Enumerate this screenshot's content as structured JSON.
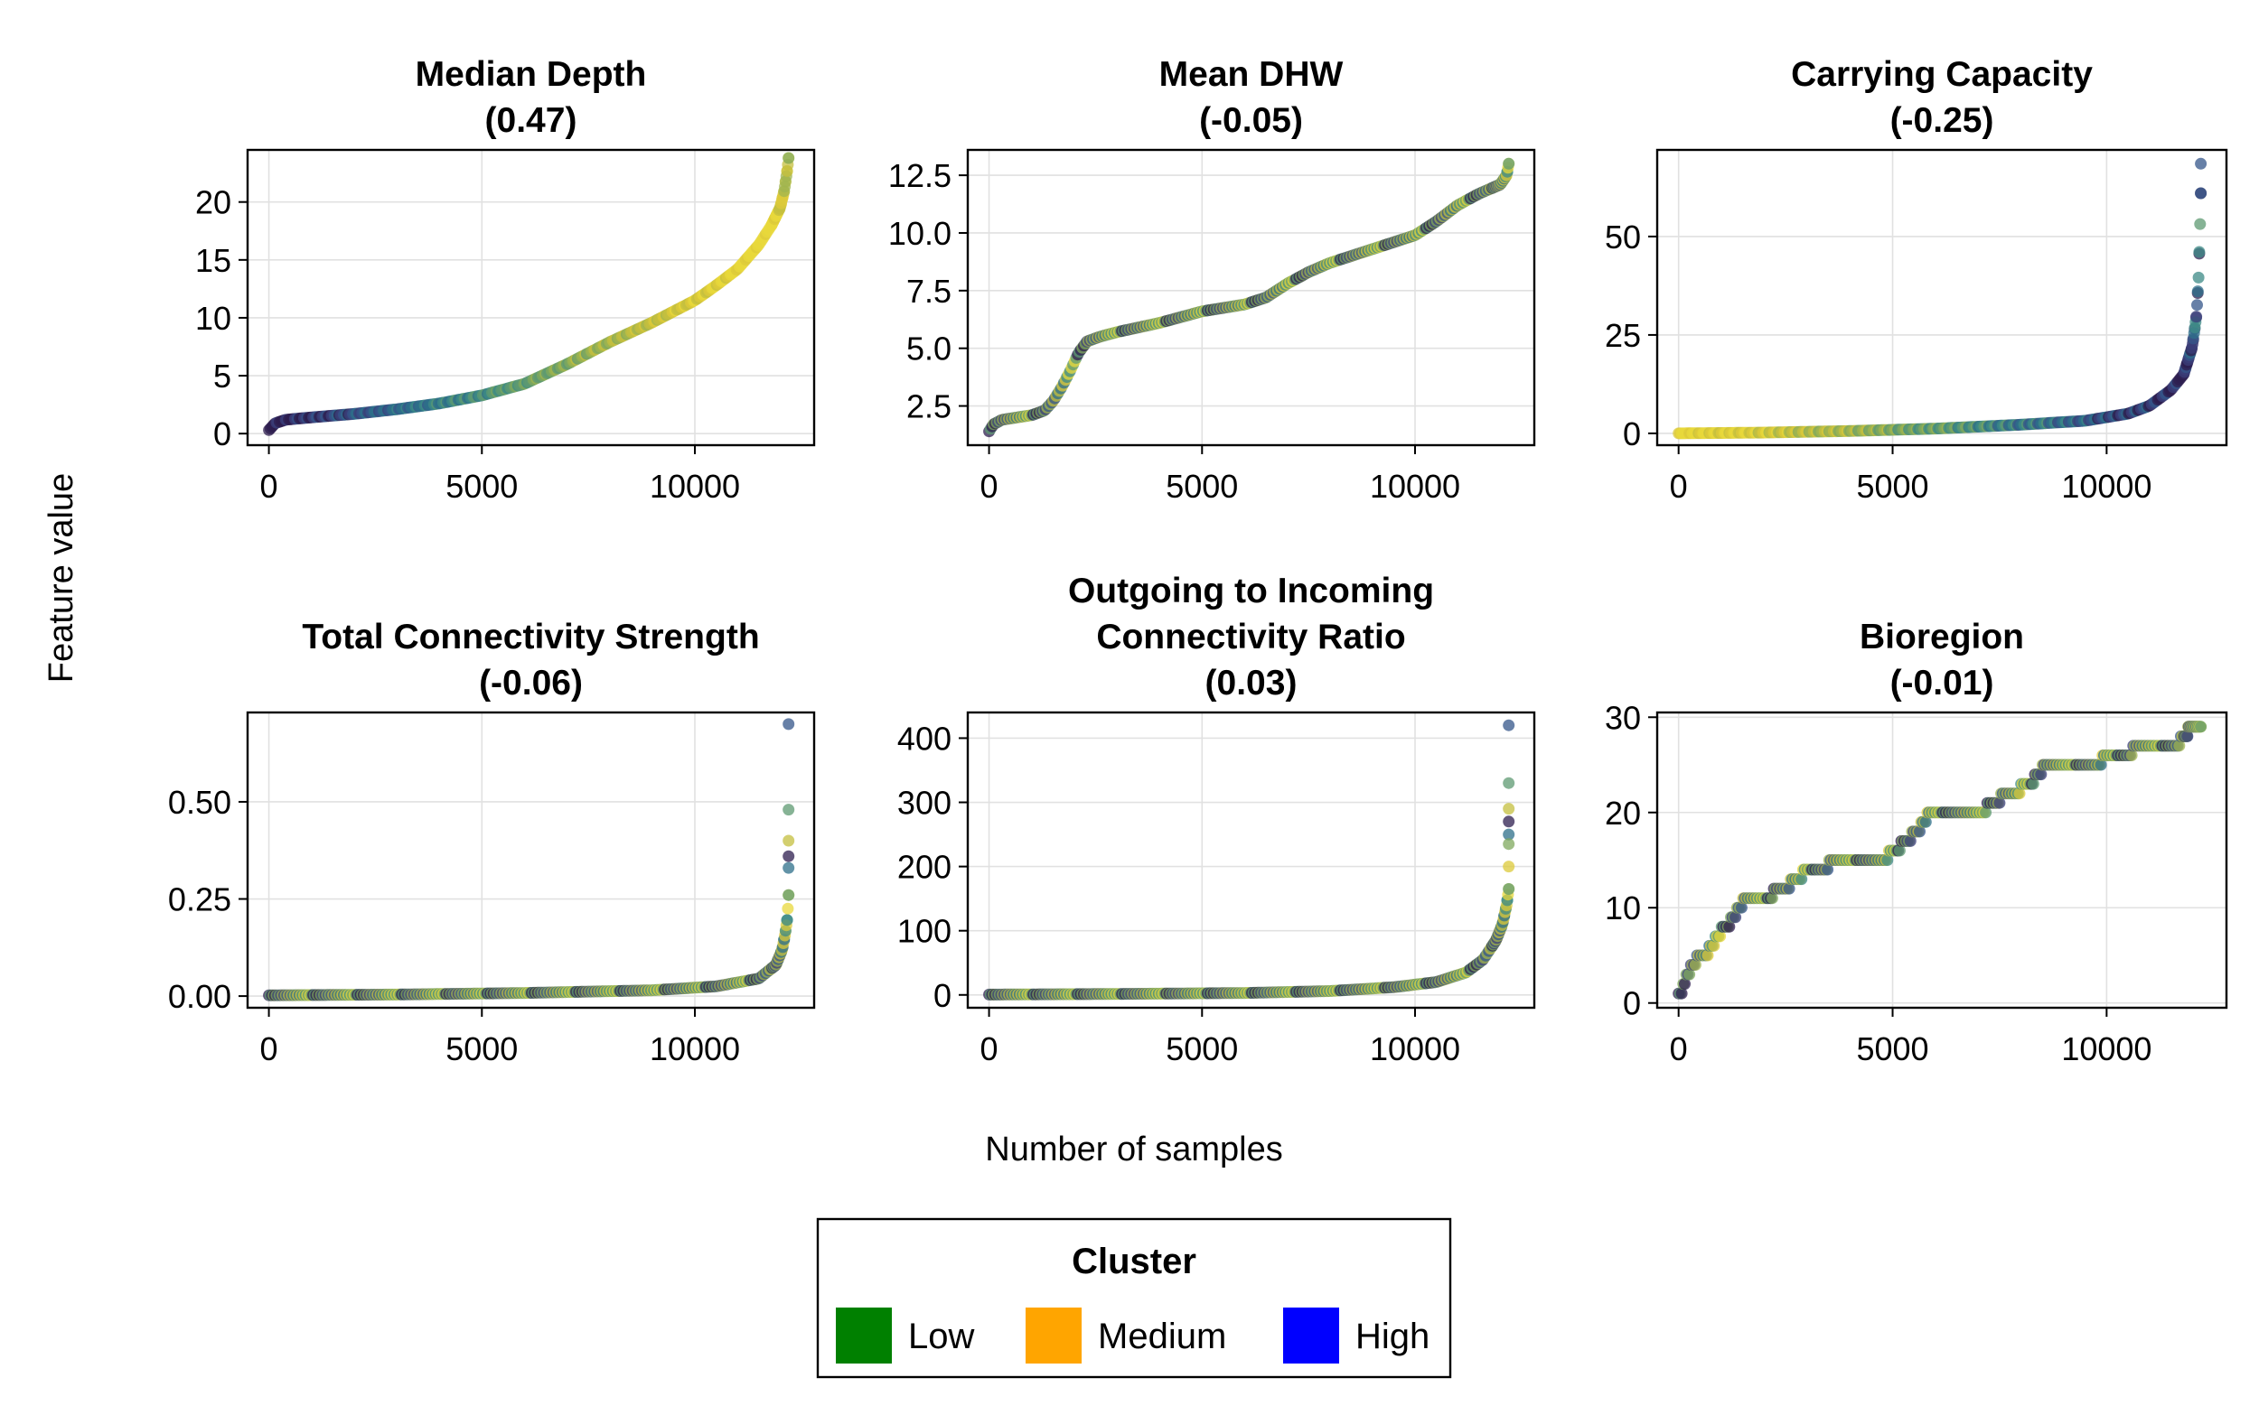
{
  "figure": {
    "ylabel": "Feature value",
    "xlabel": "Number of samples",
    "legend": {
      "title": "Cluster",
      "items": [
        {
          "label": "Low",
          "color": "#008000"
        },
        {
          "label": "Medium",
          "color": "#ffa500"
        },
        {
          "label": "High",
          "color": "#0000ff"
        }
      ]
    }
  },
  "chart_data": [
    {
      "type": "scatter",
      "title_lines": [
        "Median Depth",
        "(0.47)"
      ],
      "xlim": [
        -500,
        12800
      ],
      "ylim": [
        -1,
        24.5
      ],
      "xticks": [
        0,
        5000,
        10000
      ],
      "xtick_labels": [
        "0",
        "5000",
        "10000"
      ],
      "yticks": [
        0,
        5,
        10,
        15,
        20
      ],
      "ytick_labels": [
        "0",
        "5",
        "10",
        "15",
        "20"
      ],
      "grid": true,
      "curve": [
        [
          0,
          0.3
        ],
        [
          150,
          0.9
        ],
        [
          400,
          1.2
        ],
        [
          1000,
          1.4
        ],
        [
          2000,
          1.7
        ],
        [
          3000,
          2.1
        ],
        [
          4000,
          2.6
        ],
        [
          5000,
          3.3
        ],
        [
          6000,
          4.3
        ],
        [
          7000,
          6.0
        ],
        [
          8000,
          7.9
        ],
        [
          9000,
          9.6
        ],
        [
          10000,
          11.5
        ],
        [
          10500,
          12.8
        ],
        [
          11000,
          14.2
        ],
        [
          11500,
          16.3
        ],
        [
          11800,
          18.0
        ],
        [
          12000,
          19.5
        ],
        [
          12100,
          21.0
        ],
        [
          12170,
          22.8
        ],
        [
          12200,
          23.8
        ]
      ],
      "color_trend": "dark-to-yellow"
    },
    {
      "type": "scatter",
      "title_lines": [
        "Mean DHW",
        "(-0.05)"
      ],
      "xlim": [
        -500,
        12800
      ],
      "ylim": [
        0.8,
        13.6
      ],
      "xticks": [
        0,
        5000,
        10000
      ],
      "xtick_labels": [
        "0",
        "5000",
        "10000"
      ],
      "yticks": [
        2.5,
        5.0,
        7.5,
        10.0,
        12.5
      ],
      "ytick_labels": [
        "2.5",
        "5.0",
        "7.5",
        "10.0",
        "12.5"
      ],
      "grid": true,
      "curve": [
        [
          0,
          1.4
        ],
        [
          100,
          1.7
        ],
        [
          300,
          1.9
        ],
        [
          1000,
          2.1
        ],
        [
          1300,
          2.3
        ],
        [
          1500,
          2.7
        ],
        [
          1700,
          3.3
        ],
        [
          1900,
          4.0
        ],
        [
          2100,
          4.8
        ],
        [
          2300,
          5.3
        ],
        [
          2600,
          5.5
        ],
        [
          3000,
          5.7
        ],
        [
          4000,
          6.1
        ],
        [
          5000,
          6.6
        ],
        [
          6000,
          6.9
        ],
        [
          6500,
          7.2
        ],
        [
          7000,
          7.8
        ],
        [
          7500,
          8.3
        ],
        [
          8000,
          8.7
        ],
        [
          9000,
          9.3
        ],
        [
          10000,
          9.9
        ],
        [
          10500,
          10.5
        ],
        [
          11000,
          11.2
        ],
        [
          11500,
          11.7
        ],
        [
          12000,
          12.1
        ],
        [
          12150,
          12.5
        ],
        [
          12200,
          13.0
        ]
      ],
      "color_trend": "mixed"
    },
    {
      "type": "scatter",
      "title_lines": [
        "Carrying Capacity",
        "(-0.25)"
      ],
      "xlim": [
        -500,
        12800
      ],
      "ylim": [
        -3,
        72
      ],
      "xticks": [
        0,
        5000,
        10000
      ],
      "xtick_labels": [
        "0",
        "5000",
        "10000"
      ],
      "yticks": [
        0,
        25,
        50
      ],
      "ytick_labels": [
        "0",
        "25",
        "50"
      ],
      "grid": true,
      "curve": [
        [
          0,
          0
        ],
        [
          2000,
          0.2
        ],
        [
          4000,
          0.6
        ],
        [
          6000,
          1.2
        ],
        [
          8000,
          2.2
        ],
        [
          9500,
          3.2
        ],
        [
          10500,
          5.0
        ],
        [
          11000,
          7.0
        ],
        [
          11500,
          11.0
        ],
        [
          11800,
          15.0
        ],
        [
          12000,
          22.0
        ],
        [
          12100,
          30.0
        ],
        [
          12150,
          40.0
        ],
        [
          12180,
          52.0
        ],
        [
          12200,
          61.0
        ]
      ],
      "outliers": [
        [
          12200,
          68.5
        ]
      ],
      "color_trend": "yellow-to-dark"
    },
    {
      "type": "scatter",
      "title_lines": [
        "Total Connectivity Strength",
        "(-0.06)"
      ],
      "xlim": [
        -500,
        12800
      ],
      "ylim": [
        -0.03,
        0.73
      ],
      "xticks": [
        0,
        5000,
        10000
      ],
      "xtick_labels": [
        "0",
        "5000",
        "10000"
      ],
      "yticks": [
        0.0,
        0.25,
        0.5
      ],
      "ytick_labels": [
        "0.00",
        "0.25",
        "0.50"
      ],
      "grid": true,
      "curve": [
        [
          0,
          0.002
        ],
        [
          3000,
          0.004
        ],
        [
          6000,
          0.008
        ],
        [
          9000,
          0.015
        ],
        [
          10500,
          0.025
        ],
        [
          11500,
          0.045
        ],
        [
          11900,
          0.08
        ],
        [
          12050,
          0.12
        ],
        [
          12120,
          0.16
        ],
        [
          12170,
          0.2
        ],
        [
          12200,
          0.26
        ]
      ],
      "outliers": [
        [
          12200,
          0.7
        ],
        [
          12200,
          0.48
        ],
        [
          12200,
          0.4
        ],
        [
          12200,
          0.36
        ],
        [
          12200,
          0.33
        ]
      ],
      "color_trend": "mixed"
    },
    {
      "type": "scatter",
      "title_lines": [
        "Outgoing to Incoming",
        "Connectivity Ratio",
        "(0.03)"
      ],
      "xlim": [
        -500,
        12800
      ],
      "ylim": [
        -20,
        440
      ],
      "xticks": [
        0,
        5000,
        10000
      ],
      "xtick_labels": [
        "0",
        "5000",
        "10000"
      ],
      "yticks": [
        0,
        100,
        200,
        300,
        400
      ],
      "ytick_labels": [
        "0",
        "100",
        "200",
        "300",
        "400"
      ],
      "grid": true,
      "curve": [
        [
          0,
          0.5
        ],
        [
          3000,
          1.5
        ],
        [
          6000,
          3.0
        ],
        [
          8000,
          6.0
        ],
        [
          9500,
          12.0
        ],
        [
          10500,
          20.0
        ],
        [
          11200,
          35.0
        ],
        [
          11600,
          55.0
        ],
        [
          11900,
          85.0
        ],
        [
          12050,
          110.0
        ],
        [
          12150,
          140.0
        ],
        [
          12200,
          165.0
        ]
      ],
      "outliers": [
        [
          12200,
          420
        ],
        [
          12200,
          330
        ],
        [
          12200,
          290
        ],
        [
          12200,
          270
        ],
        [
          12200,
          250
        ],
        [
          12200,
          235
        ],
        [
          12200,
          200
        ]
      ],
      "color_trend": "mixed"
    },
    {
      "type": "scatter",
      "title_lines": [
        "Bioregion",
        "(-0.01)"
      ],
      "xlim": [
        -500,
        12800
      ],
      "ylim": [
        -0.5,
        30.5
      ],
      "xticks": [
        0,
        5000,
        10000
      ],
      "xtick_labels": [
        "0",
        "5000",
        "10000"
      ],
      "yticks": [
        0,
        10,
        20,
        30
      ],
      "ytick_labels": [
        "0",
        "10",
        "20",
        "30"
      ],
      "grid": true,
      "curve": [
        [
          0,
          1
        ],
        [
          80,
          2
        ],
        [
          160,
          3
        ],
        [
          260,
          4
        ],
        [
          400,
          5
        ],
        [
          700,
          6
        ],
        [
          850,
          7
        ],
        [
          1000,
          8
        ],
        [
          1200,
          9
        ],
        [
          1350,
          10
        ],
        [
          1500,
          11
        ],
        [
          2200,
          12
        ],
        [
          2600,
          13
        ],
        [
          2900,
          14
        ],
        [
          3500,
          15
        ],
        [
          4900,
          16
        ],
        [
          5200,
          17
        ],
        [
          5450,
          18
        ],
        [
          5650,
          19
        ],
        [
          5800,
          20
        ],
        [
          7200,
          21
        ],
        [
          7500,
          22
        ],
        [
          8000,
          23
        ],
        [
          8300,
          24
        ],
        [
          8500,
          25
        ],
        [
          9900,
          26
        ],
        [
          10600,
          27
        ],
        [
          11700,
          28
        ],
        [
          11900,
          29
        ],
        [
          12200,
          29
        ]
      ],
      "step": true,
      "color_trend": "mixed"
    }
  ]
}
